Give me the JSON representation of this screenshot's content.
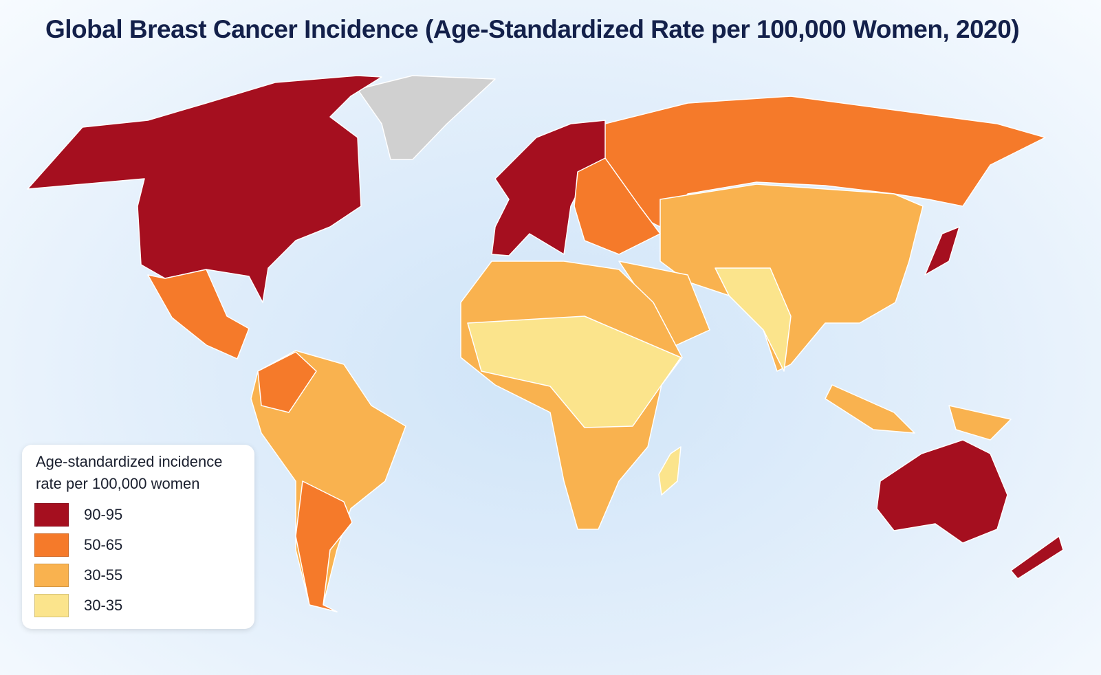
{
  "title": "Global Breast Cancer Incidence (Age-Standardized Rate per 100,000 Women, 2020)",
  "legend": {
    "title_lines": [
      "Age-standardized incidence",
      "rate per 100,000 women"
    ],
    "items": [
      {
        "label": "90-95",
        "color": "#a50f1f"
      },
      {
        "label": "50-65",
        "color": "#f57a2a"
      },
      {
        "label": "30-55",
        "color": "#f9b24f"
      },
      {
        "label": "30-35",
        "color": "#fbe48c"
      }
    ]
  }
}
